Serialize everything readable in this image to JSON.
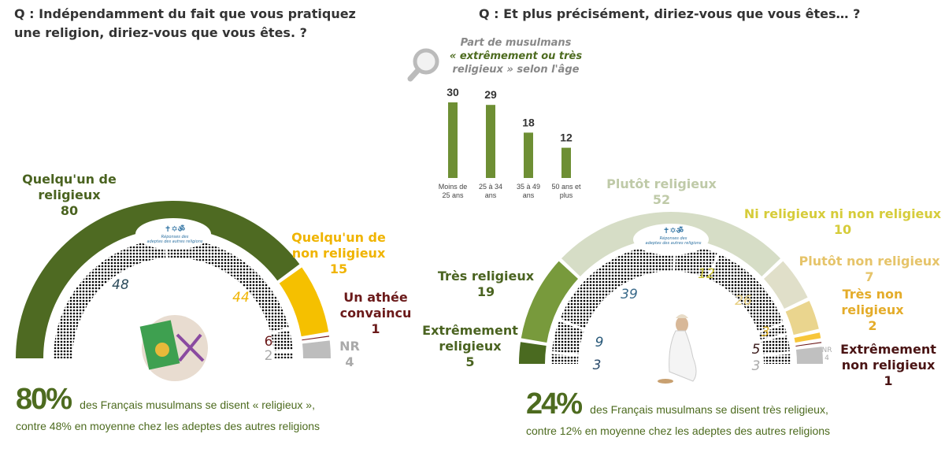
{
  "left": {
    "question": [
      "Q : Indépendamment du fait que vous pratiquez",
      "une religion, diriez-vous que vous êtes.    ?"
    ],
    "emblem": {
      "icons": "✝✡ॐ",
      "text": [
        "Réponses des",
        "adeptes des autres religions"
      ]
    },
    "labels": {
      "religieux": [
        "Quelqu'un de",
        "religieux",
        "80"
      ],
      "non_religieux": [
        "Quelqu'un de",
        "non religieux",
        "15"
      ],
      "athee": [
        "Un athée",
        "convaincu",
        "1"
      ],
      "nr": [
        "NR",
        "4"
      ]
    },
    "inner_labels": {
      "religieux": "48",
      "non_religieux": "44",
      "athee": "6",
      "nr": "2"
    },
    "summary": {
      "big": "80%",
      "line1": "des Français musulmans se disent « religieux »,",
      "line2": "contre 48% en moyenne chez les adeptes des autres religions"
    }
  },
  "right": {
    "question": "Q : Et plus précisément, diriez-vous que vous êtes… ?",
    "bar_title": [
      "Part de musulmans",
      "« extrêmement ou très",
      "religieux » selon l'âge"
    ],
    "emblem": {
      "icons": "✝✡ॐ",
      "text": [
        "Réponses des",
        "adeptes des autres religions"
      ]
    },
    "labels": {
      "extr": [
        "Extrêmement",
        "religieux",
        "5"
      ],
      "tres": [
        "Très religieux",
        "19"
      ],
      "plutot": [
        "Plutôt religieux",
        "52"
      ],
      "ni": [
        "Ni religieux ni non religieux",
        "10"
      ],
      "plutot_non": [
        "Plutôt non religieux",
        "7"
      ],
      "tres_non": [
        "Très non",
        "religieux",
        "2"
      ],
      "extr_non": [
        "Extrêmement",
        "non religieux",
        "1"
      ],
      "nr": [
        "NR",
        "4"
      ]
    },
    "inner_labels": {
      "extr": "3",
      "tres": "9",
      "plutot": "39",
      "ni": "12",
      "plutot_non": "26",
      "tres_non": "3",
      "extr_non": "5",
      "nr": "3"
    },
    "summary": {
      "big": "24%",
      "line1": "des Français musulmans se disent très religieux,",
      "line2": "contre 12% en moyenne chez les adeptes des autres religions"
    }
  },
  "chart_data": [
    {
      "type": "gauge",
      "series": [
        {
          "name": "Français musulmans",
          "categories": [
            "Quelqu'un de religieux",
            "Quelqu'un de non religieux",
            "Un athée convaincu",
            "NR"
          ],
          "values": [
            80,
            15,
            1,
            4
          ],
          "colors": [
            "#4e6a22",
            "#f5c000",
            "#7a1c1c",
            "#bdbdbd"
          ]
        },
        {
          "name": "Réponses des adeptes des autres religions",
          "categories": [
            "Quelqu'un de religieux",
            "Quelqu'un de non religieux",
            "Un athée convaincu",
            "NR"
          ],
          "values": [
            48,
            44,
            6,
            2
          ],
          "colors": [
            "#4f86ad",
            "#f5c000",
            "#7a1c1c",
            "#bdbdbd"
          ]
        }
      ]
    },
    {
      "type": "bar",
      "title": "Part de musulmans « extrêmement ou très religieux » selon l'âge",
      "categories": [
        [
          "Moins de",
          "25 ans"
        ],
        [
          "25 à 34",
          "ans"
        ],
        [
          "35 à 49",
          "ans"
        ],
        [
          "50 ans et",
          "plus"
        ]
      ],
      "values": [
        30,
        29,
        18,
        12
      ],
      "color": "#6e8f34",
      "ylim": [
        0,
        30
      ]
    },
    {
      "type": "gauge",
      "series": [
        {
          "name": "Français musulmans",
          "categories": [
            "Extrêmement religieux",
            "Très religieux",
            "Plutôt religieux",
            "Ni religieux ni non religieux",
            "Plutôt non religieux",
            "Très non religieux",
            "Extrêmement non religieux",
            "NR"
          ],
          "values": [
            5,
            19,
            52,
            10,
            7,
            2,
            1,
            4
          ],
          "colors": [
            "#4a6a20",
            "#789a3c",
            "#d6ddc6",
            "#e0dfc9",
            "#ead58e",
            "#f7c63a",
            "#6a1616",
            "#c0c0c0"
          ]
        },
        {
          "name": "Réponses des adeptes des autres religions",
          "categories": [
            "Extrêmement religieux",
            "Très religieux",
            "Plutôt religieux",
            "Ni religieux ni non religieux",
            "Plutôt non religieux",
            "Très non religieux",
            "Extrêmement non religieux",
            "NR"
          ],
          "values": [
            3,
            9,
            39,
            12,
            26,
            3,
            5,
            3
          ],
          "colors": [
            "#3f7aa6",
            "#3f7aa6",
            "#8fb3cc",
            "#c8cf2a",
            "#efd98a",
            "#e6b820",
            "#7a1c1c",
            "#b8b8b8"
          ]
        }
      ]
    }
  ]
}
